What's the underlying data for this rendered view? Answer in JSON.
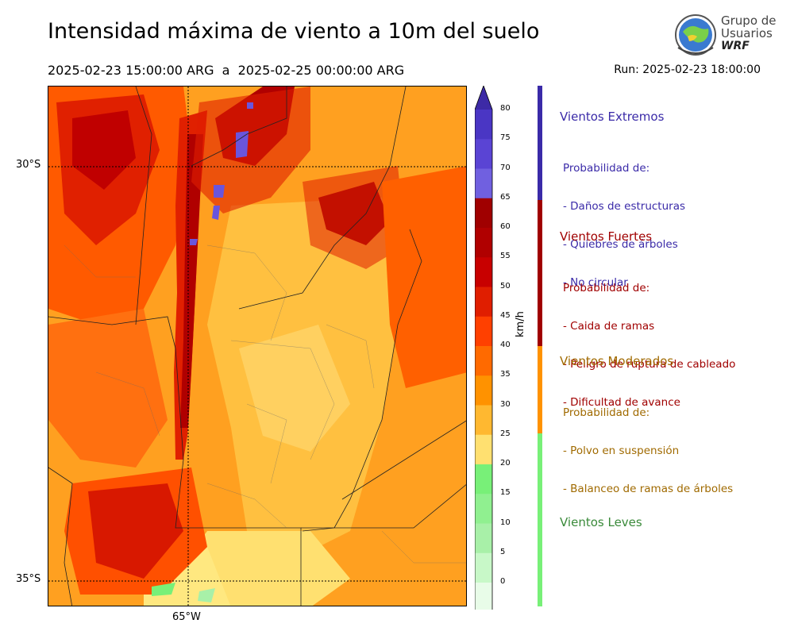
{
  "title": "Intensidad máxima de viento a 10m del suelo",
  "period": "2025-02-23 15:00:00 ARG  a  2025-02-25 00:00:00 ARG",
  "run": "Run: 2025-02-23 18:00:00",
  "logo": {
    "line1": "Grupo de",
    "line2": "Usuarios",
    "line3": "WRF"
  },
  "map": {
    "lat_labels": [
      "30°S",
      "35°S"
    ],
    "lon_labels": [
      "65°W"
    ]
  },
  "colorbar": {
    "unit": "km/h",
    "ticks": [
      "80",
      "75",
      "70",
      "65",
      "60",
      "55",
      "50",
      "45",
      "40",
      "35",
      "30",
      "25",
      "20",
      "15",
      "10",
      "5",
      "0"
    ],
    "colors": [
      "#3d2aa6",
      "#4a36c4",
      "#5a44d4",
      "#7060e0",
      "#a00000",
      "#b00000",
      "#c80000",
      "#e01e00",
      "#ff4000",
      "#ff6a00",
      "#ff9200",
      "#ffb830",
      "#ffe070",
      "#78f078",
      "#90f090",
      "#a8f0a8",
      "#c8f8c8",
      "#e8fce8"
    ]
  },
  "categories": [
    {
      "name": "Vientos Extremos",
      "color": "#3a2aa8",
      "desc": [
        "Probabilidad de:",
        "- Daños de estructuras",
        "- Quiebres de árboles",
        "- No circular"
      ]
    },
    {
      "name": "Vientos Fuertes",
      "color": "#a00000",
      "desc": [
        "Probabilidad de:",
        "- Caida de ramas",
        "- Peligro de ruptura de cableado",
        "- Dificultad de avance"
      ]
    },
    {
      "name": "Vientos Moderados",
      "color": "#a06a00",
      "desc": [
        "Probabilidad de:",
        "- Polvo en suspensión",
        "- Balanceo de ramas de árboles"
      ]
    },
    {
      "name": "Vientos Leves",
      "color": "#3a8a3a",
      "desc": []
    }
  ],
  "side_colors": {
    "extremos": "#3a2aa8",
    "fuertes": "#a00000",
    "moderados": "#ff9200",
    "leves": "#78f078"
  }
}
